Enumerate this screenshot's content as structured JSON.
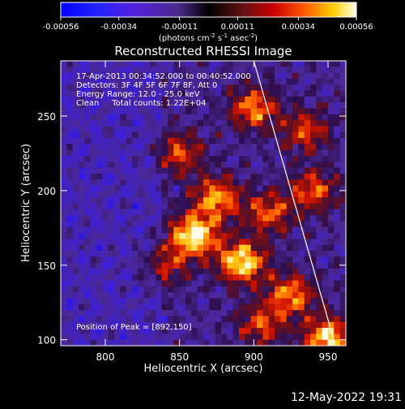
{
  "chart_data": {
    "type": "heatmap",
    "title": "Reconstructed RHESSI Image",
    "xlabel": "Heliocentric X (arcsec)",
    "ylabel": "Heliocentric Y (arcsec)",
    "xlim": [
      770,
      962
    ],
    "ylim": [
      96,
      287
    ],
    "x_ticks": [
      800,
      850,
      900,
      950
    ],
    "y_ticks": [
      100,
      150,
      200,
      250
    ],
    "colorbar": {
      "range": [
        -0.00056,
        0.00056
      ],
      "ticks": [
        "-0.00056",
        "-0.00034",
        "-0.00011",
        "0.00011",
        "0.00034",
        "0.00056"
      ],
      "tick_values": [
        -0.00056,
        -0.00034,
        -0.00011,
        0.00011,
        0.00034,
        0.00056
      ],
      "unit_label": "(photons cm",
      "unit_sup1": "-2",
      "unit_mid": " s",
      "unit_sup2": "-1",
      "unit_end": " asec",
      "unit_sup3": "-2",
      "unit_close": ")"
    },
    "annotations": [
      "17-Apr-2013 00:34:52.000 to 00:40:52.000",
      "Detectors: 3F 4F 5F 6F 7F 8F, Att 0",
      "Energy Range: 12.0 - 25.0 keV",
      "Clean     Total counts: 1.22E+04"
    ],
    "peak_label": "Position of Peak = [892,150]",
    "peak": [
      892,
      150
    ],
    "hot_spots": [
      {
        "x": 860,
        "y": 170,
        "amp": 1.0
      },
      {
        "x": 892,
        "y": 152,
        "amp": 0.95
      },
      {
        "x": 950,
        "y": 101,
        "amp": 0.9
      },
      {
        "x": 875,
        "y": 195,
        "amp": 0.75
      },
      {
        "x": 900,
        "y": 255,
        "amp": 0.7
      },
      {
        "x": 925,
        "y": 130,
        "amp": 0.7
      },
      {
        "x": 850,
        "y": 225,
        "amp": 0.55
      },
      {
        "x": 940,
        "y": 200,
        "amp": 0.6
      },
      {
        "x": 910,
        "y": 185,
        "amp": 0.6
      },
      {
        "x": 905,
        "y": 110,
        "amp": 0.55
      },
      {
        "x": 840,
        "y": 150,
        "amp": 0.45
      },
      {
        "x": 935,
        "y": 240,
        "amp": 0.55
      }
    ],
    "limb_line": {
      "x": [
        900,
        955
      ],
      "y": [
        287,
        96
      ]
    }
  },
  "timestamp": "12-May-2022 19:31"
}
